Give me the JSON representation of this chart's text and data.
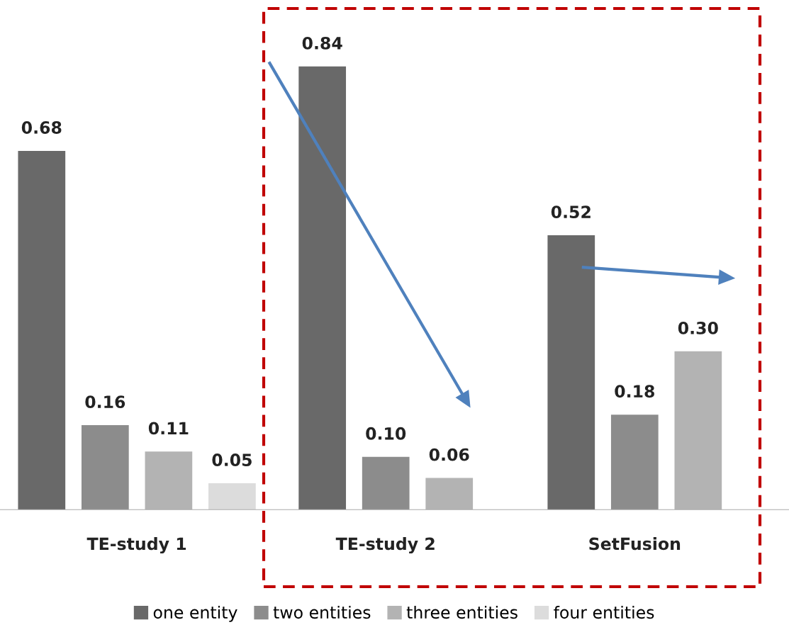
{
  "chart_data": {
    "type": "bar",
    "categories": [
      "TE-study 1",
      "TE-study 2",
      "SetFusion"
    ],
    "series": [
      {
        "name": "one entity",
        "color": "#696969",
        "values": [
          0.68,
          0.84,
          0.52
        ],
        "value_labels": [
          "0.68",
          "0.84",
          "0.52"
        ]
      },
      {
        "name": "two entities",
        "color": "#8c8c8c",
        "values": [
          0.16,
          0.1,
          0.18
        ],
        "value_labels": [
          "0.16",
          "0.10",
          "0.18"
        ]
      },
      {
        "name": "three entities",
        "color": "#b3b3b3",
        "values": [
          0.11,
          0.06,
          0.3
        ],
        "value_labels": [
          "0.11",
          "0.06",
          "0.30"
        ]
      },
      {
        "name": "four entities",
        "color": "#dcdcdc",
        "values": [
          0.05,
          null,
          null
        ],
        "value_labels": [
          "0.05",
          null,
          null
        ]
      }
    ],
    "legend": "bottom",
    "grid": false
  }
}
